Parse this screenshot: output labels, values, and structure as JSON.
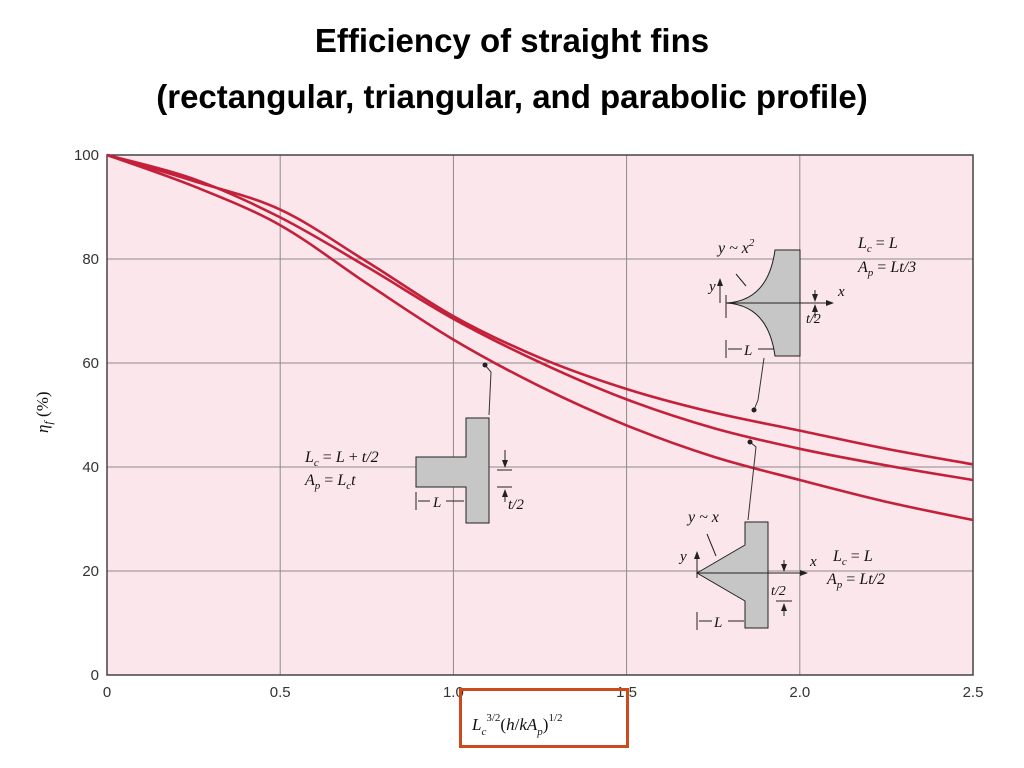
{
  "title_line1": "Efficiency of straight fins",
  "title_line2": "(rectangular, triangular, and parabolic profile)",
  "colors": {
    "curve": "#c4203a",
    "plot_background": "#fbe6ec",
    "grid": "#8e8a8c",
    "highlight_box": "#cc4a1c",
    "fin_fill": "#c6c6c6"
  },
  "chart_data": {
    "type": "line",
    "title": "",
    "xlabel": "Lc^(3/2)(h/kAp)^(1/2)",
    "ylabel": "ηf (%)",
    "xlim": [
      0,
      2.5
    ],
    "ylim": [
      0,
      100
    ],
    "grid": true,
    "x_ticks": [
      0,
      0.5,
      1.0,
      1.5,
      2.0,
      2.5
    ],
    "x_tick_labels": [
      "0",
      "0.5",
      "1.0",
      "1.5",
      "2.0",
      "2.5"
    ],
    "y_ticks": [
      0,
      20,
      40,
      60,
      80,
      100
    ],
    "y_tick_labels": [
      "0",
      "20",
      "40",
      "60",
      "80",
      "100"
    ],
    "series": [
      {
        "profile": "rectangular",
        "x": [
          0,
          0.25,
          0.5,
          0.75,
          1.0,
          1.25,
          1.5,
          1.75,
          2.0,
          2.25,
          2.5
        ],
        "y": [
          100,
          95.4,
          88,
          78.5,
          68.5,
          60.1,
          53,
          47.5,
          43.5,
          40.3,
          37.5
        ]
      },
      {
        "profile": "triangular",
        "x": [
          0,
          0.25,
          0.5,
          0.75,
          1.0,
          1.25,
          1.5,
          1.75,
          2.0,
          2.25,
          2.5
        ],
        "y": [
          100,
          95,
          89.5,
          79.5,
          69,
          61,
          55,
          50.5,
          47,
          43.5,
          40.5
        ]
      },
      {
        "profile": "parabolic",
        "x": [
          0,
          0.25,
          0.5,
          0.75,
          1.0,
          1.25,
          1.5,
          1.75,
          2.0,
          2.25,
          2.5
        ],
        "y": [
          100,
          94,
          86.5,
          75.3,
          64.5,
          55.5,
          48,
          42,
          37.5,
          33.3,
          29.8
        ]
      }
    ],
    "annotations": {
      "rectangular": {
        "Lc": "Lc = L + t/2",
        "Ap": "Ap = Lct",
        "half_thickness": "t/2",
        "length": "L"
      },
      "triangular": {
        "profile_eq": "y ~ x",
        "Lc": "Lc = L",
        "Ap": "Ap = Lt/2",
        "half_thickness": "t/2",
        "length": "L",
        "x_axis": "x",
        "y_axis": "y"
      },
      "parabolic": {
        "profile_eq": "y ~ x²",
        "Lc": "Lc = L",
        "Ap": "Ap = Lt/3",
        "half_thickness": "t/2",
        "length": "L",
        "x_axis": "x",
        "y_axis": "y"
      }
    }
  }
}
